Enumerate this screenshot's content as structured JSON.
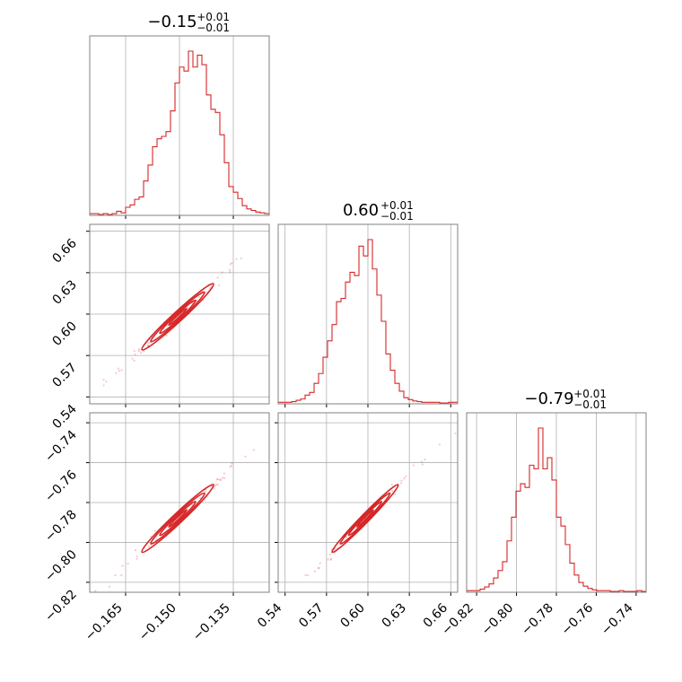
{
  "figure": {
    "kind": "corner-plot",
    "color": "#d62728",
    "grid_color": "#b0b0b0",
    "frame_color": "#808080"
  },
  "chart_data": [
    {
      "id": "hist-p0",
      "type": "bar",
      "style": "step-histogram",
      "title": {
        "value": "−0.15",
        "upper": "+0.01",
        "lower": "−0.01"
      },
      "xlim": [
        -0.175,
        -0.125
      ],
      "xticks": [
        -0.165,
        -0.15,
        -0.135
      ],
      "show_xticklabels": false,
      "show_yticklabels": false,
      "bin_start": -0.175,
      "bin_width": 0.00125,
      "counts": [
        1,
        1,
        0,
        1,
        0,
        1,
        4,
        2,
        9,
        12,
        19,
        22,
        42,
        62,
        85,
        95,
        98,
        104,
        130,
        165,
        185,
        180,
        205,
        185,
        200,
        188,
        150,
        132,
        128,
        100,
        65,
        35,
        28,
        20,
        11,
        7,
        5,
        3,
        2,
        1
      ]
    },
    {
      "id": "hist-p1",
      "type": "bar",
      "style": "step-histogram",
      "title": {
        "value": "0.60",
        "upper": "+0.01",
        "lower": "−0.01"
      },
      "xlim": [
        0.535,
        0.665
      ],
      "xticks": [
        0.54,
        0.57,
        0.6,
        0.63,
        0.66
      ],
      "show_xticklabels": false,
      "show_yticklabels": false,
      "bin_start": 0.535,
      "bin_width": 0.00325,
      "counts": [
        1,
        1,
        1,
        2,
        4,
        6,
        12,
        16,
        30,
        45,
        70,
        95,
        120,
        155,
        160,
        185,
        200,
        195,
        240,
        225,
        250,
        205,
        165,
        125,
        75,
        50,
        30,
        18,
        8,
        5,
        3,
        2,
        1,
        1,
        1,
        1,
        0,
        0,
        1,
        1
      ]
    },
    {
      "id": "hist-p2",
      "type": "bar",
      "style": "step-histogram",
      "title": {
        "value": "−0.79",
        "upper": "+0.01",
        "lower": "−0.01"
      },
      "xlim": [
        -0.825,
        -0.735
      ],
      "xticks": [
        -0.82,
        -0.8,
        -0.78,
        -0.76,
        -0.74
      ],
      "show_xticklabels": true,
      "show_yticklabels": false,
      "bin_start": -0.825,
      "bin_width": 0.00225,
      "counts": [
        1,
        1,
        1,
        3,
        6,
        10,
        18,
        28,
        40,
        68,
        100,
        135,
        145,
        140,
        170,
        165,
        220,
        165,
        180,
        150,
        100,
        88,
        63,
        38,
        22,
        12,
        7,
        4,
        2,
        1,
        1,
        1,
        0,
        0,
        1,
        0,
        0,
        0,
        1,
        0
      ]
    },
    {
      "id": "joint-p0-p1",
      "type": "scatter",
      "style": "2d-contour",
      "xlim": [
        -0.175,
        -0.125
      ],
      "ylim": [
        0.535,
        0.665
      ],
      "xticks": [
        -0.165,
        -0.15,
        -0.135
      ],
      "yticks": [
        0.54,
        0.57,
        0.6,
        0.63,
        0.66
      ],
      "show_xticklabels": false,
      "show_yticklabels": true,
      "mean": [
        -0.1505,
        0.598
      ],
      "sd": [
        0.005,
        0.012
      ],
      "corr": 0.98
    },
    {
      "id": "joint-p0-p2",
      "type": "scatter",
      "style": "2d-contour",
      "xlim": [
        -0.175,
        -0.125
      ],
      "ylim": [
        -0.825,
        -0.735
      ],
      "xticks": [
        -0.165,
        -0.15,
        -0.135
      ],
      "yticks": [
        -0.82,
        -0.8,
        -0.78,
        -0.76,
        -0.74
      ],
      "show_xticklabels": true,
      "show_yticklabels": true,
      "mean": [
        -0.1505,
        -0.788
      ],
      "sd": [
        0.005,
        0.0085
      ],
      "corr": 0.98
    },
    {
      "id": "joint-p1-p2",
      "type": "scatter",
      "style": "2d-contour",
      "xlim": [
        0.535,
        0.665
      ],
      "ylim": [
        -0.825,
        -0.735
      ],
      "xticks": [
        0.54,
        0.57,
        0.6,
        0.63,
        0.66
      ],
      "yticks": [
        -0.82,
        -0.8,
        -0.78,
        -0.76,
        -0.74
      ],
      "show_xticklabels": true,
      "show_yticklabels": false,
      "mean": [
        0.598,
        -0.788
      ],
      "sd": [
        0.012,
        0.0085
      ],
      "corr": 0.985
    }
  ],
  "tick_text": {
    "p0": [
      "−0.165",
      "−0.150",
      "−0.135"
    ],
    "p1": [
      "0.54",
      "0.57",
      "0.60",
      "0.63",
      "0.66"
    ],
    "p2": [
      "−0.82",
      "−0.80",
      "−0.78",
      "−0.76",
      "−0.74"
    ]
  }
}
